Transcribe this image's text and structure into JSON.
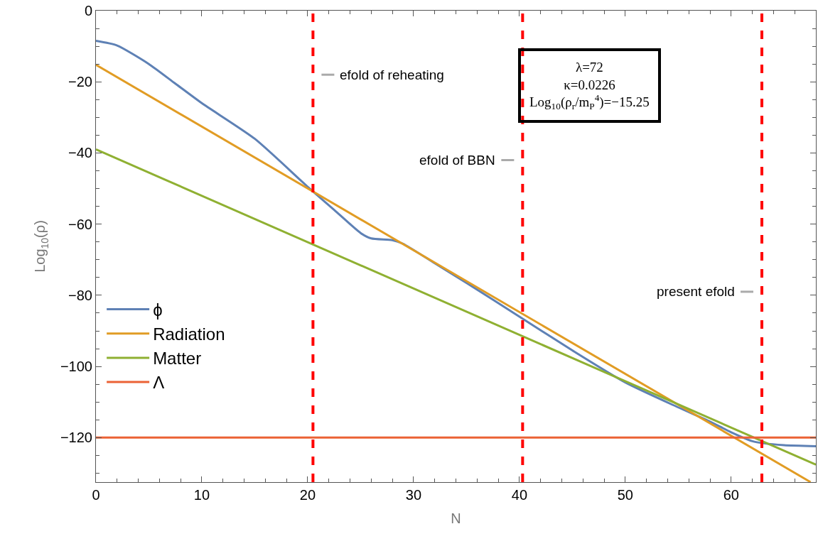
{
  "chart_data": {
    "type": "line",
    "xlabel": "N",
    "ylabel": "Log$_{10}$(ρ)",
    "series": [
      {
        "name": "ϕ",
        "color": "#5e81b5",
        "x": [
          0,
          2,
          5,
          7.5,
          10,
          15,
          20,
          22.5,
          25,
          26,
          28,
          29,
          32,
          35,
          40,
          45,
          50,
          55,
          58,
          60,
          62,
          63.1,
          65,
          68
        ],
        "values": [
          -8.5,
          -9.8,
          -15,
          -20.5,
          -26,
          -36,
          -49.5,
          -56,
          -62.5,
          -64,
          -64.5,
          -65.5,
          -71,
          -76.5,
          -86,
          -95.5,
          -104.5,
          -111.5,
          -115.5,
          -118.5,
          -121,
          -121.6,
          -122.1,
          -122.4
        ]
      },
      {
        "name": "Radiation",
        "color": "#e19c24",
        "x": [
          0,
          67.5
        ],
        "values": [
          -15.2,
          -132.5
        ]
      },
      {
        "name": "Matter",
        "color": "#8fb032",
        "x": [
          0,
          68
        ],
        "values": [
          -39,
          -127.6
        ]
      },
      {
        "name": "Λ",
        "color": "#eb6235",
        "x": [
          0,
          68
        ],
        "values": [
          -120,
          -120
        ]
      }
    ],
    "xlim": [
      0,
      68
    ],
    "ylim": [
      -132.5,
      0
    ],
    "xticks": [
      0,
      10,
      20,
      30,
      40,
      50,
      60
    ],
    "yticks": [
      0,
      -20,
      -40,
      -60,
      -80,
      -100,
      -120
    ],
    "ref_lines": [
      {
        "axis": "x",
        "value": 20.5,
        "label": "efold of reheating",
        "color": "#ff0000",
        "line_style": "dashed"
      },
      {
        "axis": "x",
        "value": 40.3,
        "label": "efold of BBN",
        "color": "#ff0000",
        "line_style": "dashed"
      },
      {
        "axis": "x",
        "value": 62.9,
        "label": "present efold",
        "color": "#ff0000",
        "line_style": "dashed"
      }
    ],
    "annotations": [
      "λ=72\nκ=0.0226\nLog$_{10}$(ρ$_{r}$/m$_{P}$$^{4}$)=−15.25"
    ],
    "legend": "left",
    "marker": "none",
    "line_style": "solid"
  }
}
